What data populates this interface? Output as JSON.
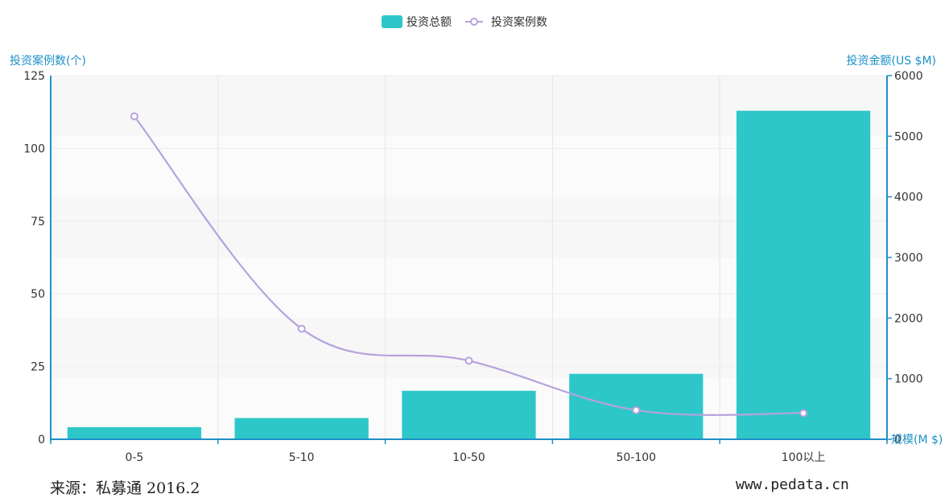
{
  "chart_data": {
    "type": "bar+line",
    "categories": [
      "0-5",
      "5-10",
      "10-50",
      "50-100",
      "100以上"
    ],
    "xlabel": "规模(M $)",
    "series": [
      {
        "name": "投资总额",
        "type": "bar",
        "axis": "right",
        "values": [
          200,
          350,
          800,
          1080,
          5420
        ]
      },
      {
        "name": "投资案例数",
        "type": "line",
        "axis": "left",
        "values": [
          111,
          38,
          27,
          10,
          9
        ]
      }
    ],
    "left_axis": {
      "label": "投资案例数(个)",
      "range": [
        0,
        125
      ],
      "ticks": [
        0,
        25,
        50,
        75,
        100,
        125
      ]
    },
    "right_axis": {
      "label": "投资金额(US $M)",
      "range": [
        0,
        6000
      ],
      "ticks": [
        0,
        1000,
        2000,
        3000,
        4000,
        5000,
        6000
      ]
    },
    "legend_position": "top-center",
    "colors": {
      "bar": "#2ec7c9",
      "line": "#b6a2de",
      "axis": "#1e90c8"
    }
  },
  "footer": {
    "source": "来源：私募通 2016.2",
    "site": "www.pedata.cn"
  }
}
